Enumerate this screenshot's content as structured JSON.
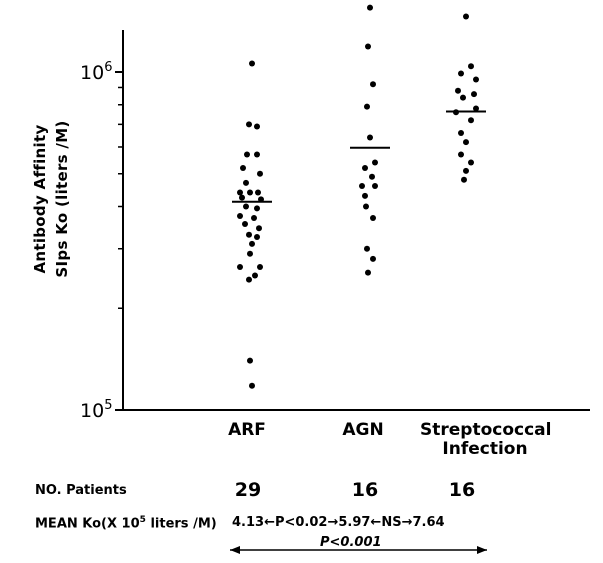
{
  "chart_data": {
    "type": "scatter",
    "title": "",
    "ylabel_line1": "Antibody Affinity",
    "ylabel_line2": "SIps Ko (liters /M)",
    "yscale": "log",
    "ylim": [
      100000,
      1500000
    ],
    "yticks": [
      {
        "value": 100000,
        "base": "10",
        "exp": "5"
      },
      {
        "value": 1000000,
        "base": "10",
        "exp": "6"
      }
    ],
    "categories": [
      "ARF",
      "AGN",
      "Streptococcal Infection"
    ],
    "category_lines": [
      [
        "ARF"
      ],
      [
        "AGN"
      ],
      [
        "Streptococcal",
        "Infection"
      ]
    ],
    "series": [
      {
        "category": "ARF",
        "mean": 413000,
        "points": [
          {
            "y": 1060000,
            "dx": 0
          },
          {
            "y": 700000,
            "dx": -3
          },
          {
            "y": 690000,
            "dx": 5
          },
          {
            "y": 570000,
            "dx": -5
          },
          {
            "y": 570000,
            "dx": 5
          },
          {
            "y": 520000,
            "dx": -9
          },
          {
            "y": 500000,
            "dx": 8
          },
          {
            "y": 470000,
            "dx": -6
          },
          {
            "y": 440000,
            "dx": -12
          },
          {
            "y": 440000,
            "dx": -2
          },
          {
            "y": 440000,
            "dx": 6
          },
          {
            "y": 425000,
            "dx": -10
          },
          {
            "y": 420000,
            "dx": 9
          },
          {
            "y": 400000,
            "dx": -6
          },
          {
            "y": 395000,
            "dx": 5
          },
          {
            "y": 375000,
            "dx": -12
          },
          {
            "y": 370000,
            "dx": 2
          },
          {
            "y": 355000,
            "dx": -7
          },
          {
            "y": 345000,
            "dx": 7
          },
          {
            "y": 330000,
            "dx": -3
          },
          {
            "y": 325000,
            "dx": 5
          },
          {
            "y": 310000,
            "dx": 0
          },
          {
            "y": 290000,
            "dx": -2
          },
          {
            "y": 265000,
            "dx": -12
          },
          {
            "y": 265000,
            "dx": 8
          },
          {
            "y": 250000,
            "dx": 3
          },
          {
            "y": 243000,
            "dx": -3
          },
          {
            "y": 140000,
            "dx": -2
          },
          {
            "y": 118000,
            "dx": 0
          }
        ]
      },
      {
        "category": "AGN",
        "mean": 597000,
        "points": [
          {
            "y": 1550000,
            "dx": 0
          },
          {
            "y": 1190000,
            "dx": -2
          },
          {
            "y": 920000,
            "dx": 3
          },
          {
            "y": 790000,
            "dx": -3
          },
          {
            "y": 640000,
            "dx": 0
          },
          {
            "y": 540000,
            "dx": 5
          },
          {
            "y": 520000,
            "dx": -5
          },
          {
            "y": 490000,
            "dx": 2
          },
          {
            "y": 460000,
            "dx": -8
          },
          {
            "y": 460000,
            "dx": 5
          },
          {
            "y": 430000,
            "dx": -5
          },
          {
            "y": 400000,
            "dx": -4
          },
          {
            "y": 370000,
            "dx": 3
          },
          {
            "y": 300000,
            "dx": -3
          },
          {
            "y": 280000,
            "dx": 3
          },
          {
            "y": 255000,
            "dx": -2
          }
        ]
      },
      {
        "category": "Streptococcal Infection",
        "mean": 764000,
        "points": [
          {
            "y": 1460000,
            "dx": 0
          },
          {
            "y": 1040000,
            "dx": 5
          },
          {
            "y": 990000,
            "dx": -5
          },
          {
            "y": 950000,
            "dx": 10
          },
          {
            "y": 880000,
            "dx": -8
          },
          {
            "y": 860000,
            "dx": 8
          },
          {
            "y": 840000,
            "dx": -3
          },
          {
            "y": 780000,
            "dx": 10
          },
          {
            "y": 760000,
            "dx": -10
          },
          {
            "y": 720000,
            "dx": 5
          },
          {
            "y": 660000,
            "dx": -5
          },
          {
            "y": 620000,
            "dx": 0
          },
          {
            "y": 570000,
            "dx": -5
          },
          {
            "y": 540000,
            "dx": 5
          },
          {
            "y": 510000,
            "dx": 0
          },
          {
            "y": 480000,
            "dx": -2
          }
        ]
      }
    ]
  },
  "table": {
    "patients_label": "NO. Patients",
    "patients": [
      "29",
      "16",
      "16"
    ],
    "mean_label_pre": "MEAN Ko(X 10",
    "mean_label_exp": "5",
    "mean_label_post": " liters /M)",
    "means_text": "4.13←P<0.02→5.97←NS→7.64",
    "overall_p": "P<0.001"
  }
}
